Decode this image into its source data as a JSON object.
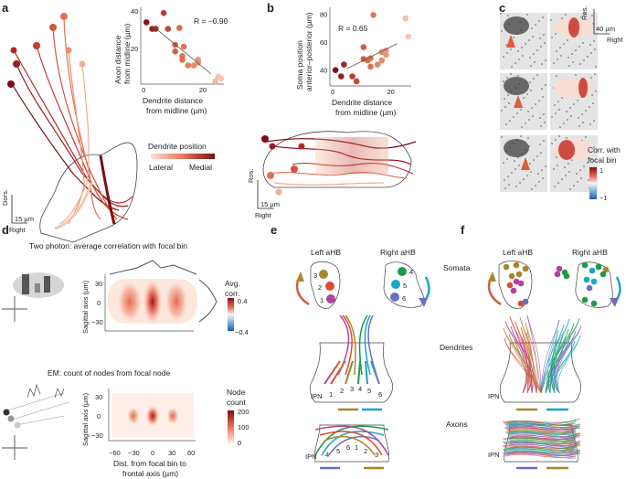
{
  "panels": {
    "a": "a",
    "b": "b",
    "c": "c",
    "d": "d",
    "e": "e",
    "f": "f"
  },
  "panel_a": {
    "scale": "15 µm",
    "dors": "Dors.",
    "right": "Right",
    "legend_title": "Dendrite position",
    "legend_lateral": "Lateral",
    "legend_medial": "Medial"
  },
  "panel_b": {
    "scale": "15 µm",
    "ros": "Ros.",
    "right": "Right"
  },
  "panel_c": {
    "ros": "Ros.",
    "scale": "40 µm",
    "right": "Right",
    "cbar_title1": "Corr. with",
    "cbar_title2": "focal bin",
    "cbar_max": "1",
    "cbar_min": "−1"
  },
  "panel_d": {
    "title_top": "Two photon: average correlation with focal bin",
    "title_bottom": "EM: count of nodes from focal node",
    "ylabel": "Sagittal axis (µm)",
    "xlabel1": "Dist. from focal bin to",
    "xlabel2": "frontal axis (µm)",
    "yticks": [
      "30",
      "0",
      "−30"
    ],
    "xticks": [
      "−60",
      "−30",
      "0",
      "30",
      "60"
    ],
    "cbar1_title1": "Avg.",
    "cbar1_title2": "corr.",
    "cbar1_max": "0.4",
    "cbar1_min": "−0.4",
    "cbar2_title1": "Node",
    "cbar2_title2": "count",
    "cbar2_ticks": [
      "200",
      "100",
      "0"
    ]
  },
  "panel_e": {
    "left": "Left aHB",
    "right": "Right aHB",
    "nums": [
      "1",
      "2",
      "3",
      "4",
      "5",
      "6"
    ],
    "ipn": "IPN",
    "ipn2": "IPN",
    "dend_nums": [
      "1",
      "2",
      "3",
      "4",
      "5",
      "6"
    ],
    "axon_nums": [
      "4",
      "5",
      "6",
      "1",
      "2",
      "3"
    ]
  },
  "panel_f": {
    "left": "Left aHB",
    "right": "Right aHB",
    "ipn": "IPN",
    "ipn2": "IPN"
  },
  "row_labels": {
    "somata": "Somata",
    "dendrites": "Dendrites",
    "axons": "Axons"
  },
  "colors": {
    "lateral": "#f6c7ad",
    "medial": "#7b0d14",
    "c1": "#b0449c",
    "c2": "#e04a2e",
    "c3": "#a8862a",
    "c4": "#1c9a48",
    "c5": "#1aa6c4",
    "c6": "#6a6fc0"
  },
  "chart_data": [
    {
      "type": "scatter",
      "panel": "a",
      "xlabel": "Dendrite distance from midline (µm)",
      "ylabel": "Axon distance from midline (µm)",
      "xticks": [
        "0",
        "20"
      ],
      "yticks": [
        "20",
        "40"
      ],
      "annotation": "R = −0.90",
      "xlim": [
        -1,
        28
      ],
      "ylim": [
        2,
        42
      ],
      "points": [
        [
          1,
          34
        ],
        [
          3,
          30.5
        ],
        [
          4.2,
          30.5
        ],
        [
          7,
          39
        ],
        [
          8.5,
          30.5
        ],
        [
          12.5,
          31
        ],
        [
          11,
          22
        ],
        [
          14,
          21
        ],
        [
          11,
          18.5
        ],
        [
          13.5,
          16
        ],
        [
          13.5,
          14
        ],
        [
          15.5,
          11
        ],
        [
          17.5,
          11
        ],
        [
          19,
          14
        ],
        [
          19,
          12.5
        ],
        [
          26,
          5
        ],
        [
          27,
          4
        ],
        [
          25,
          2.5
        ]
      ],
      "fit": [
        [
          4,
          31
        ],
        [
          23.5,
          6.5
        ]
      ]
    },
    {
      "type": "scatter",
      "panel": "b",
      "xlabel": "Dendrite distance from midline (µm)",
      "ylabel": "Soma position anterior–posterior (µm)",
      "xticks": [
        "0",
        "20"
      ],
      "yticks": [
        "40",
        "60",
        "80"
      ],
      "annotation": "R = 0.65",
      "xlim": [
        -1,
        28
      ],
      "ylim": [
        30,
        85
      ],
      "points": [
        [
          1,
          40
        ],
        [
          3,
          35.5
        ],
        [
          4,
          44
        ],
        [
          7,
          35.5
        ],
        [
          8.5,
          32
        ],
        [
          11,
          56.5
        ],
        [
          11,
          48
        ],
        [
          12.5,
          47
        ],
        [
          14.5,
          79.5
        ],
        [
          13.5,
          48.5
        ],
        [
          13.5,
          42.5
        ],
        [
          16,
          44
        ],
        [
          17.5,
          53
        ],
        [
          17.5,
          47
        ],
        [
          19,
          54
        ],
        [
          19,
          51
        ],
        [
          26,
          77
        ],
        [
          27,
          64
        ]
      ],
      "fit": [
        [
          5,
          41
        ],
        [
          23,
          59
        ]
      ]
    }
  ]
}
